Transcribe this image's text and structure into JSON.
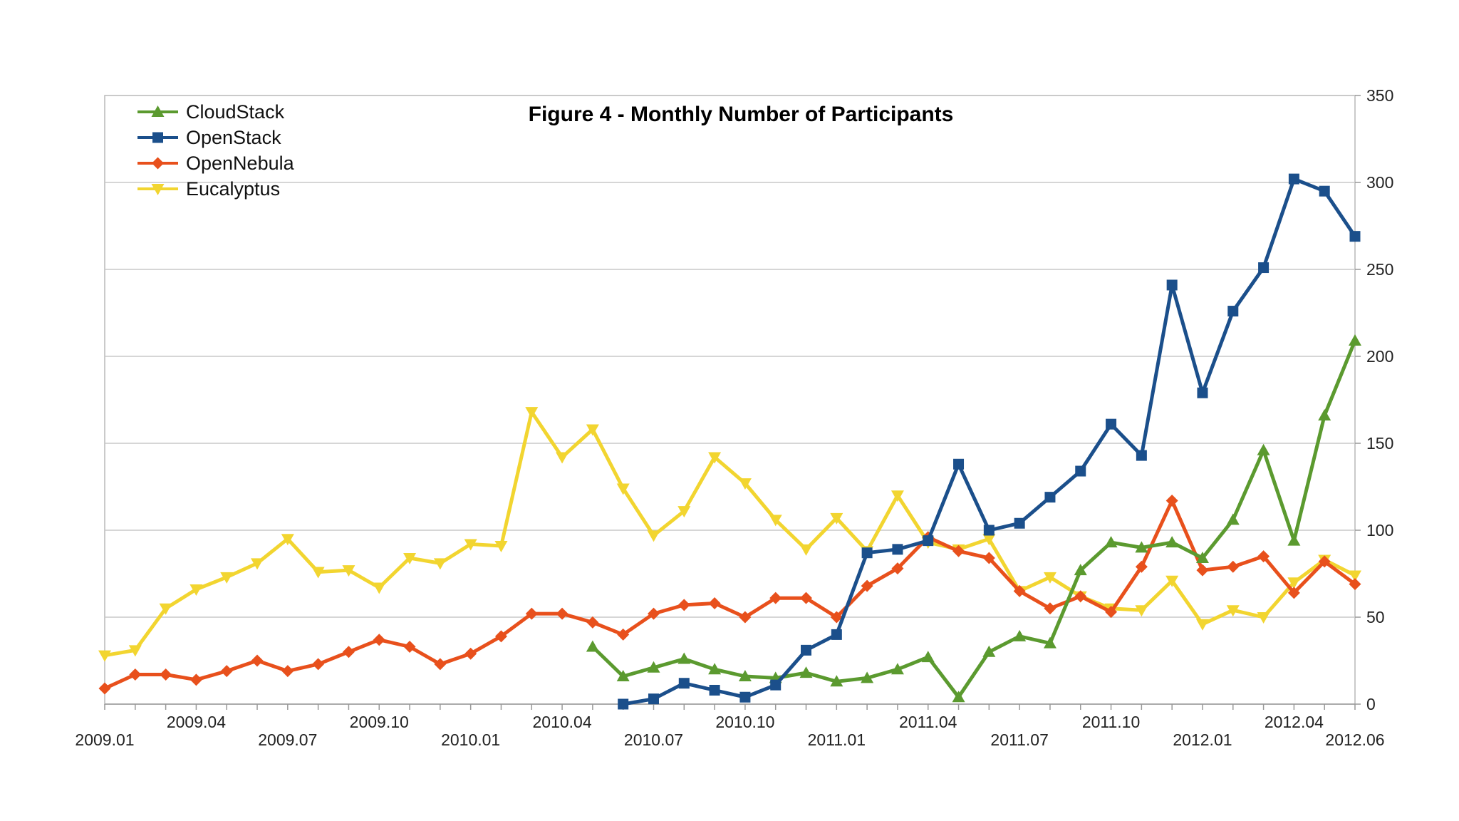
{
  "chart_data": {
    "type": "line",
    "title": "Figure 4 - Monthly Number of Participants",
    "xlabel": "",
    "ylabel": "",
    "ylim": [
      0,
      350
    ],
    "y_ticks": [
      0,
      50,
      100,
      150,
      200,
      250,
      300,
      350
    ],
    "y_axis_side": "right",
    "grid": true,
    "legend_position": "top-left",
    "x_tick_labels": [
      {
        "index": 0,
        "label": "2009.01",
        "row": "lower"
      },
      {
        "index": 3,
        "label": "2009.04",
        "row": "upper"
      },
      {
        "index": 6,
        "label": "2009.07",
        "row": "lower"
      },
      {
        "index": 9,
        "label": "2009.10",
        "row": "upper"
      },
      {
        "index": 12,
        "label": "2010.01",
        "row": "lower"
      },
      {
        "index": 15,
        "label": "2010.04",
        "row": "upper"
      },
      {
        "index": 18,
        "label": "2010.07",
        "row": "lower"
      },
      {
        "index": 21,
        "label": "2010.10",
        "row": "upper"
      },
      {
        "index": 24,
        "label": "2011.01",
        "row": "lower"
      },
      {
        "index": 27,
        "label": "2011.04",
        "row": "upper"
      },
      {
        "index": 30,
        "label": "2011.07",
        "row": "lower"
      },
      {
        "index": 33,
        "label": "2011.10",
        "row": "upper"
      },
      {
        "index": 36,
        "label": "2012.01",
        "row": "lower"
      },
      {
        "index": 39,
        "label": "2012.04",
        "row": "upper"
      },
      {
        "index": 41,
        "label": "2012.06",
        "row": "lower"
      }
    ],
    "x": [
      "2009.01",
      "2009.02",
      "2009.03",
      "2009.04",
      "2009.05",
      "2009.06",
      "2009.07",
      "2009.08",
      "2009.09",
      "2009.10",
      "2009.11",
      "2009.12",
      "2010.01",
      "2010.02",
      "2010.03",
      "2010.04",
      "2010.05",
      "2010.06",
      "2010.07",
      "2010.08",
      "2010.09",
      "2010.10",
      "2010.11",
      "2010.12",
      "2011.01",
      "2011.02",
      "2011.03",
      "2011.04",
      "2011.05",
      "2011.06",
      "2011.07",
      "2011.08",
      "2011.09",
      "2011.10",
      "2011.11",
      "2011.12",
      "2012.01",
      "2012.02",
      "2012.03",
      "2012.04",
      "2012.05",
      "2012.06"
    ],
    "series": [
      {
        "name": "CloudStack",
        "color": "#5b9a2f",
        "marker": "triangle-up",
        "values": [
          null,
          null,
          null,
          null,
          null,
          null,
          null,
          null,
          null,
          null,
          null,
          null,
          null,
          null,
          null,
          null,
          33,
          16,
          21,
          26,
          20,
          16,
          15,
          18,
          13,
          15,
          20,
          27,
          4,
          30,
          39,
          35,
          77,
          93,
          90,
          93,
          84,
          106,
          146,
          94,
          166,
          209
        ]
      },
      {
        "name": "OpenStack",
        "color": "#1b4f8b",
        "marker": "square",
        "values": [
          null,
          null,
          null,
          null,
          null,
          null,
          null,
          null,
          null,
          null,
          null,
          null,
          null,
          null,
          null,
          null,
          null,
          0,
          3,
          12,
          8,
          4,
          11,
          31,
          40,
          87,
          89,
          94,
          138,
          100,
          104,
          119,
          134,
          161,
          143,
          241,
          179,
          226,
          251,
          302,
          295,
          269
        ]
      },
      {
        "name": "OpenNebula",
        "color": "#e8501c",
        "marker": "diamond",
        "values": [
          9,
          17,
          17,
          14,
          19,
          25,
          19,
          23,
          30,
          37,
          33,
          23,
          29,
          39,
          52,
          52,
          47,
          40,
          52,
          57,
          58,
          50,
          61,
          61,
          50,
          68,
          78,
          96,
          88,
          84,
          65,
          55,
          62,
          53,
          79,
          117,
          77,
          79,
          85,
          64,
          82,
          69
        ]
      },
      {
        "name": "Eucalyptus",
        "color": "#f2d530",
        "marker": "triangle-down",
        "values": [
          28,
          31,
          55,
          66,
          73,
          81,
          95,
          76,
          77,
          67,
          84,
          81,
          92,
          91,
          168,
          142,
          158,
          124,
          97,
          111,
          142,
          127,
          106,
          89,
          107,
          88,
          120,
          93,
          89,
          95,
          65,
          73,
          62,
          55,
          54,
          71,
          46,
          54,
          50,
          70,
          83,
          74
        ]
      }
    ]
  }
}
